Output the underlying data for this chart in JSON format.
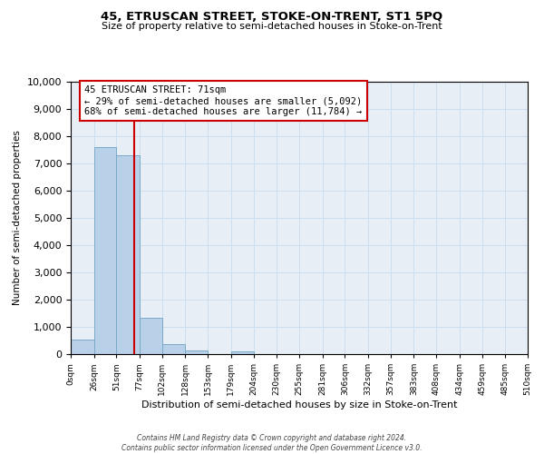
{
  "title": "45, ETRUSCAN STREET, STOKE-ON-TRENT, ST1 5PQ",
  "subtitle": "Size of property relative to semi-detached houses in Stoke-on-Trent",
  "xlabel": "Distribution of semi-detached houses by size in Stoke-on-Trent",
  "ylabel": "Number of semi-detached properties",
  "bin_edges": [
    0,
    26,
    51,
    77,
    102,
    128,
    153,
    179,
    204,
    230,
    255,
    281,
    306,
    332,
    357,
    383,
    408,
    434,
    459,
    485,
    510
  ],
  "bin_labels": [
    "0sqm",
    "26sqm",
    "51sqm",
    "77sqm",
    "102sqm",
    "128sqm",
    "153sqm",
    "179sqm",
    "204sqm",
    "230sqm",
    "255sqm",
    "281sqm",
    "306sqm",
    "332sqm",
    "357sqm",
    "383sqm",
    "408sqm",
    "434sqm",
    "459sqm",
    "485sqm",
    "510sqm"
  ],
  "counts": [
    550,
    7600,
    7300,
    1320,
    360,
    120,
    0,
    90,
    0,
    0,
    0,
    0,
    0,
    0,
    0,
    0,
    0,
    0,
    0,
    0
  ],
  "bar_color": "#b8d0e8",
  "bar_edge_color": "#7aaac8",
  "property_line_x": 71,
  "pct_smaller": 29,
  "pct_larger": 68,
  "count_smaller": "5,092",
  "count_larger": "11,784",
  "property_label": "45 ETRUSCAN STREET: 71sqm",
  "ylim": [
    0,
    10000
  ],
  "yticks": [
    0,
    1000,
    2000,
    3000,
    4000,
    5000,
    6000,
    7000,
    8000,
    9000,
    10000
  ],
  "annotation_box_color": "#ffffff",
  "annotation_box_edge": "#cc0000",
  "vline_color": "#cc0000",
  "grid_color": "#ccddee",
  "background_color": "#e8eef5",
  "fig_background": "#ffffff",
  "footer_line1": "Contains HM Land Registry data © Crown copyright and database right 2024.",
  "footer_line2": "Contains public sector information licensed under the Open Government Licence v3.0."
}
